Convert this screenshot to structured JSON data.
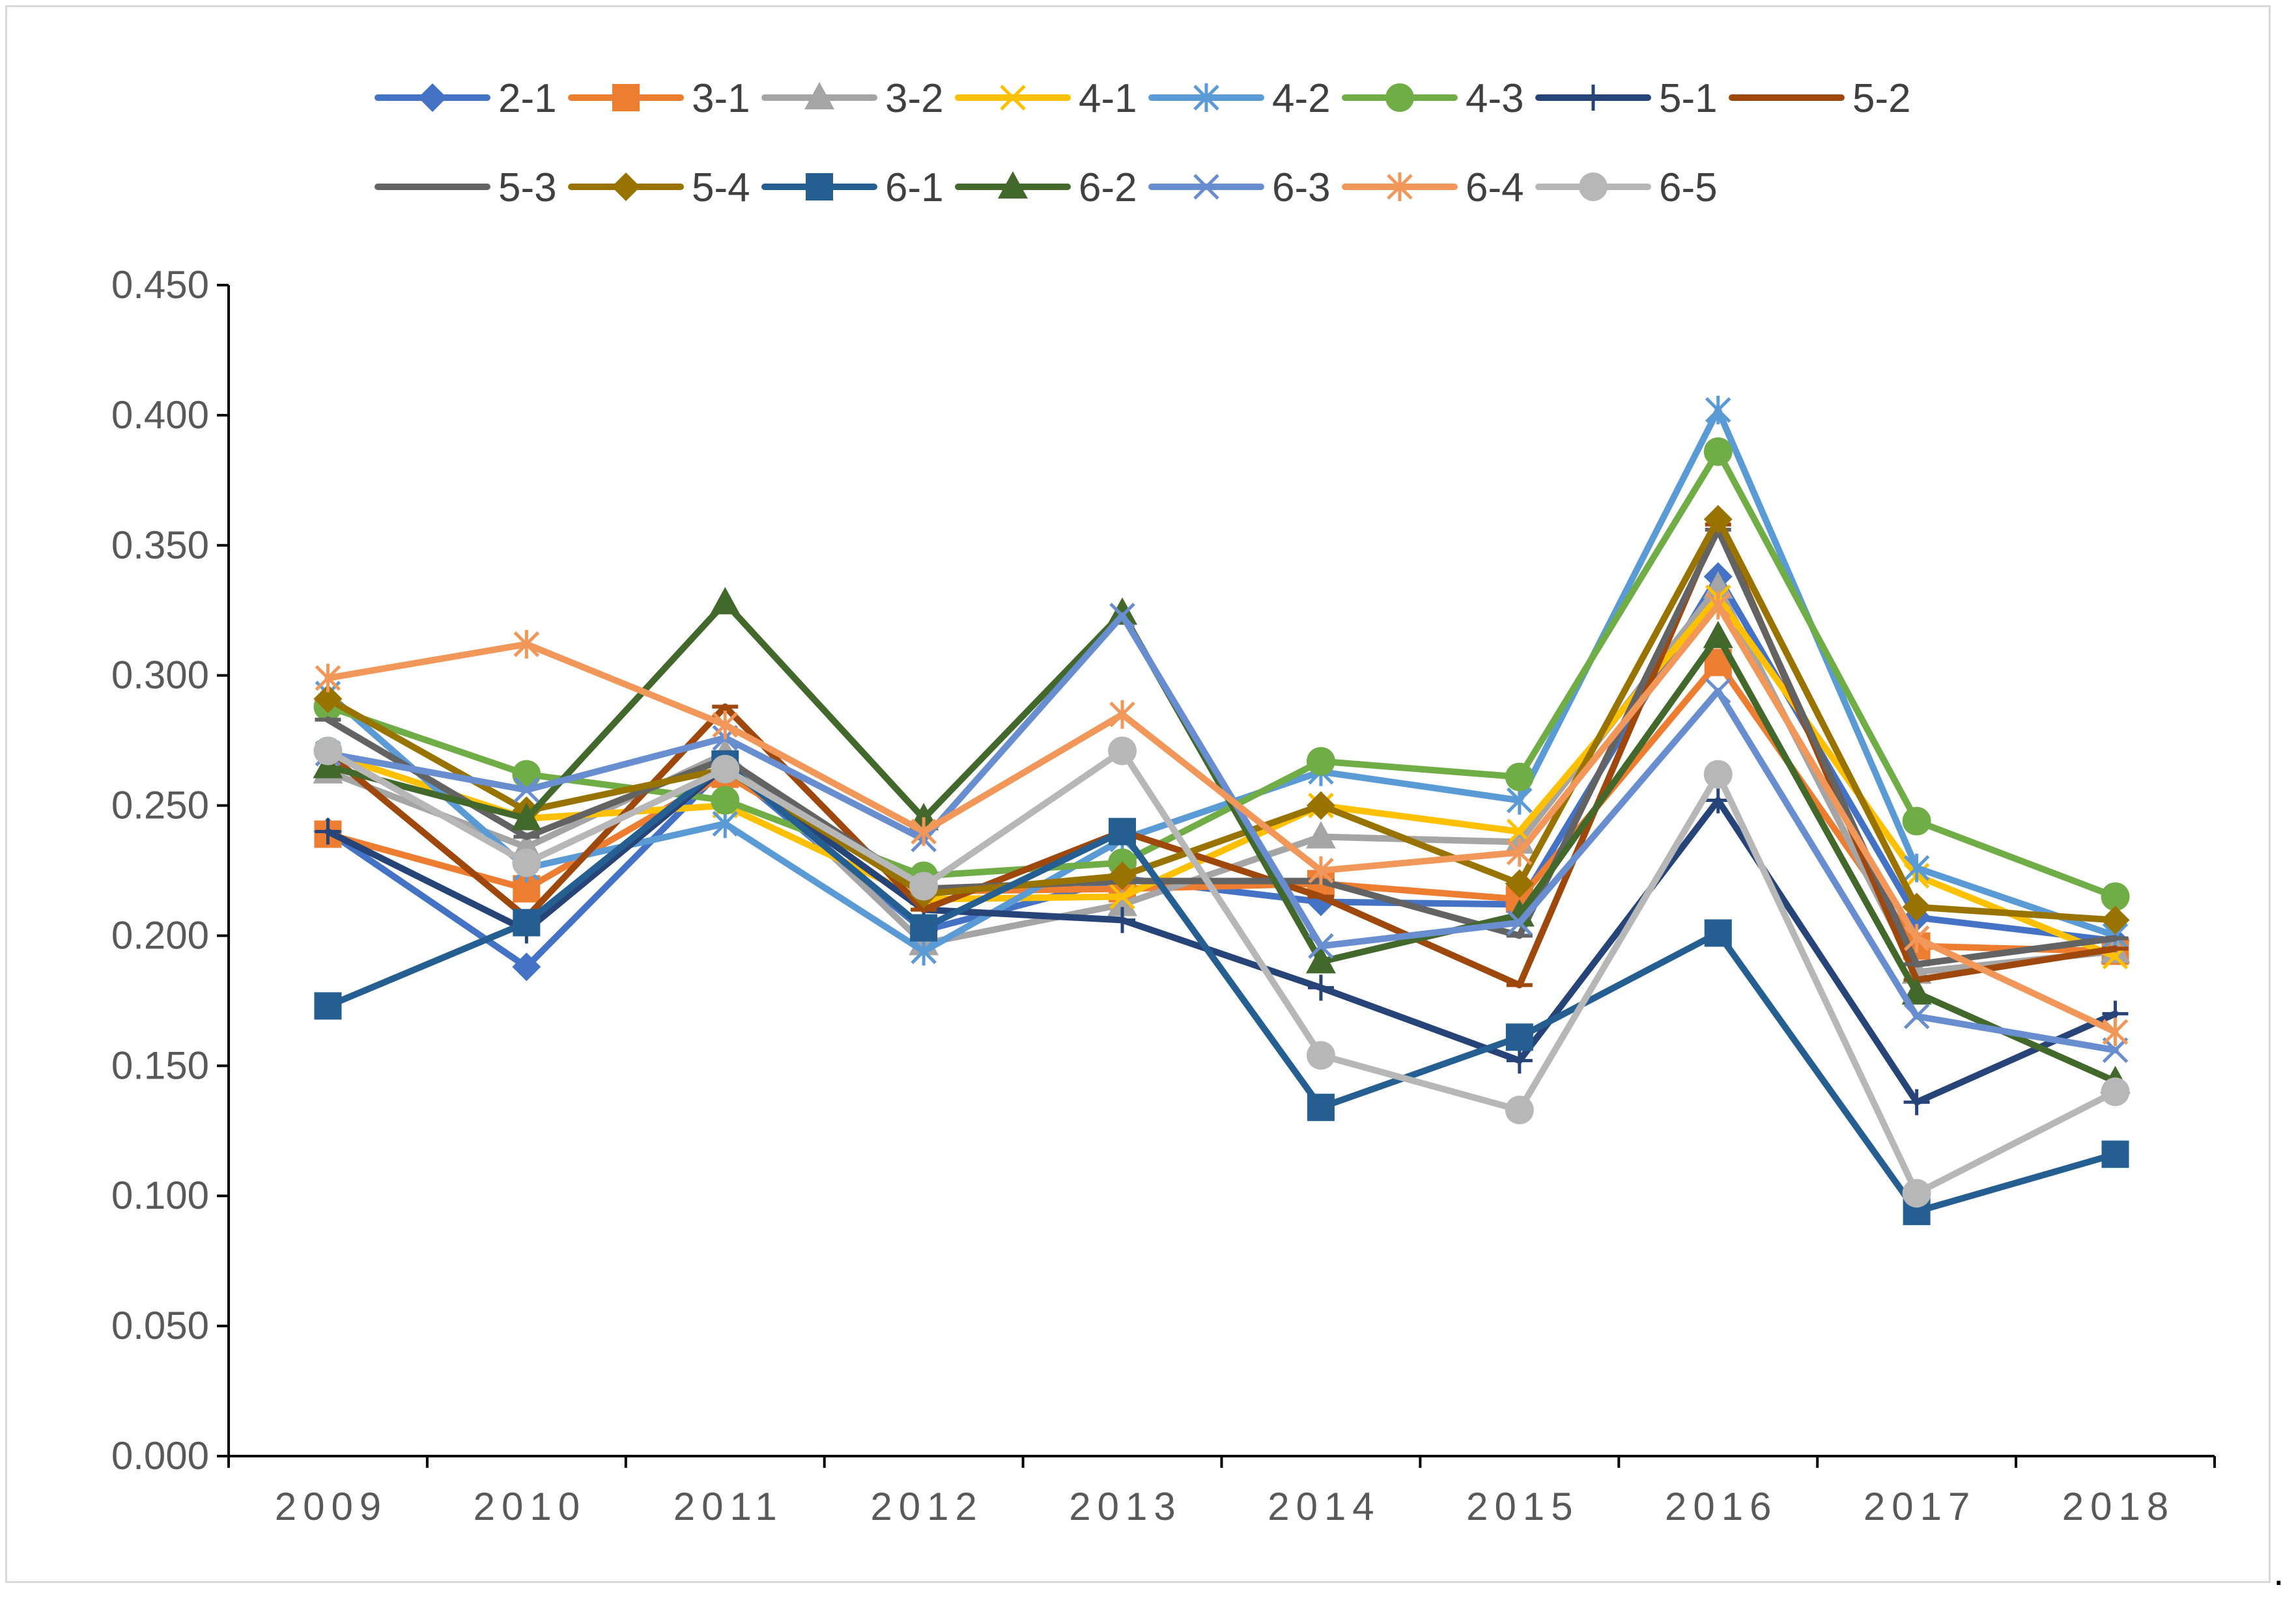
{
  "chart_data": {
    "type": "line",
    "title": "",
    "xlabel": "",
    "ylabel": "",
    "categories": [
      "2009",
      "2010",
      "2011",
      "2012",
      "2013",
      "2014",
      "2015",
      "2016",
      "2017",
      "2018"
    ],
    "ylim": [
      0,
      0.45
    ],
    "yticks": [
      "0.000",
      "0.050",
      "0.100",
      "0.150",
      "0.200",
      "0.250",
      "0.300",
      "0.350",
      "0.400",
      "0.450"
    ],
    "legend_position": "top",
    "series": [
      {
        "name": "2-1",
        "color": "#4472C4",
        "marker": "diamond",
        "values": [
          0.24,
          0.188,
          0.265,
          0.202,
          0.222,
          0.213,
          0.212,
          0.338,
          0.207,
          0.198
        ]
      },
      {
        "name": "3-1",
        "color": "#ED7D31",
        "marker": "square",
        "values": [
          0.239,
          0.218,
          0.262,
          0.217,
          0.218,
          0.22,
          0.214,
          0.305,
          0.196,
          0.194
        ]
      },
      {
        "name": "3-2",
        "color": "#A5A5A5",
        "marker": "triangle",
        "values": [
          0.263,
          0.234,
          0.27,
          0.197,
          0.212,
          0.238,
          0.236,
          0.334,
          0.186,
          0.194
        ]
      },
      {
        "name": "4-1",
        "color": "#FFC000",
        "marker": "x",
        "values": [
          0.27,
          0.245,
          0.25,
          0.214,
          0.215,
          0.25,
          0.24,
          0.33,
          0.223,
          0.192
        ]
      },
      {
        "name": "4-2",
        "color": "#5B9BD5",
        "marker": "asterisk",
        "values": [
          0.293,
          0.226,
          0.243,
          0.194,
          0.237,
          0.263,
          0.252,
          0.402,
          0.226,
          0.2
        ]
      },
      {
        "name": "4-3",
        "color": "#70AD47",
        "marker": "circle",
        "values": [
          0.288,
          0.262,
          0.252,
          0.223,
          0.228,
          0.267,
          0.261,
          0.386,
          0.244,
          0.215
        ]
      },
      {
        "name": "5-1",
        "color": "#264478",
        "marker": "plus",
        "values": [
          0.24,
          0.202,
          0.265,
          0.21,
          0.206,
          0.18,
          0.152,
          0.252,
          0.136,
          0.17
        ]
      },
      {
        "name": "5-2",
        "color": "#9E480E",
        "marker": "dash",
        "values": [
          0.27,
          0.207,
          0.288,
          0.21,
          0.24,
          0.215,
          0.181,
          0.358,
          0.183,
          0.195
        ]
      },
      {
        "name": "5-3",
        "color": "#636363",
        "marker": "dash",
        "values": [
          0.283,
          0.238,
          0.268,
          0.218,
          0.221,
          0.221,
          0.2,
          0.356,
          0.189,
          0.199
        ]
      },
      {
        "name": "5-4",
        "color": "#997300",
        "marker": "diamond",
        "values": [
          0.291,
          0.248,
          0.264,
          0.216,
          0.223,
          0.25,
          0.22,
          0.36,
          0.211,
          0.206
        ]
      },
      {
        "name": "6-1",
        "color": "#255E91",
        "marker": "square",
        "values": [
          0.173,
          0.205,
          0.266,
          0.203,
          0.24,
          0.134,
          0.161,
          0.201,
          0.094,
          0.116
        ]
      },
      {
        "name": "6-2",
        "color": "#43682B",
        "marker": "triangle",
        "values": [
          0.265,
          0.245,
          0.328,
          0.245,
          0.324,
          0.19,
          0.208,
          0.315,
          0.178,
          0.144
        ]
      },
      {
        "name": "6-3",
        "color": "#698ED0",
        "marker": "x",
        "values": [
          0.27,
          0.256,
          0.276,
          0.237,
          0.323,
          0.196,
          0.205,
          0.294,
          0.169,
          0.156
        ]
      },
      {
        "name": "6-4",
        "color": "#F1975A",
        "marker": "asterisk",
        "values": [
          0.299,
          0.312,
          0.281,
          0.24,
          0.285,
          0.225,
          0.232,
          0.327,
          0.199,
          0.163
        ]
      },
      {
        "name": "6-5",
        "color": "#B7B7B7",
        "marker": "circle",
        "values": [
          0.271,
          0.228,
          0.264,
          0.219,
          0.271,
          0.154,
          0.133,
          0.262,
          0.101,
          0.14
        ]
      }
    ]
  },
  "trailing_mark": "."
}
